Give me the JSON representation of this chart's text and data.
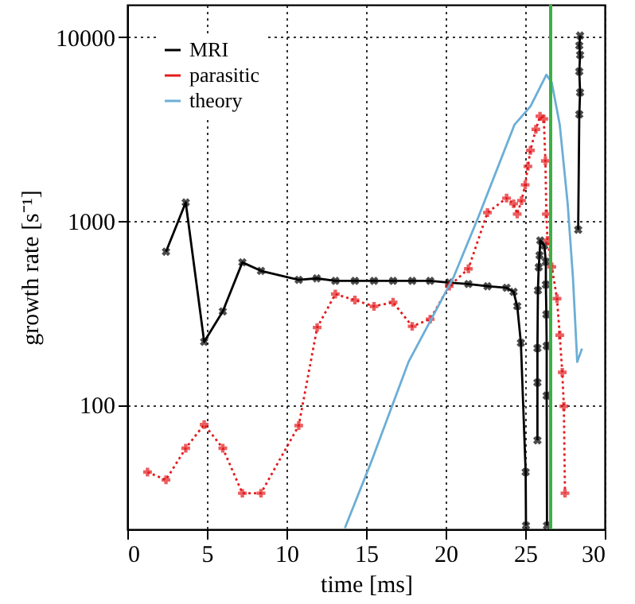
{
  "chart_data": {
    "type": "line",
    "xlabel": "time [ms]",
    "ylabel": "growth rate [s⁻¹]",
    "log": "y",
    "xlim": [
      0,
      30
    ],
    "xticks": [
      0,
      5,
      10,
      15,
      20,
      25,
      30
    ],
    "ylim": [
      21,
      15000
    ],
    "yticks": [
      100,
      1000,
      10000
    ],
    "grid": true,
    "legend": "top left",
    "ref_lines": [
      {
        "axis": "x",
        "value": 26.6,
        "color": "#3cb043"
      }
    ],
    "series": [
      {
        "name": "MRI",
        "color": "#000000",
        "marker": "cross",
        "line_style": "solid",
        "x": [
          2.43,
          3.67,
          4.83,
          6.0,
          7.23,
          8.4,
          10.77,
          11.9,
          13.07,
          14.3,
          15.5,
          16.7,
          17.9,
          19.03,
          20.23,
          21.43,
          22.63,
          23.83,
          24.27,
          24.5,
          24.73,
          25.03,
          25.05,
          null,
          25.77,
          25.77,
          25.77,
          25.8,
          25.85,
          25.9,
          25.95,
          26.2,
          26.3,
          26.3,
          26.33,
          26.35,
          26.35,
          26.37,
          null,
          28.33,
          28.4,
          28.45,
          28.4,
          28.45,
          28.4,
          28.45
        ],
        "values": [
          680,
          1260,
          220,
          322,
          595,
          535,
          478,
          487,
          472,
          472,
          472,
          472,
          472,
          472,
          462,
          454,
          441,
          433,
          411,
          344,
          217,
          43,
          22,
          null,
          64,
          132,
          203,
          419,
          560,
          650,
          783,
          735,
          600,
          450,
          310,
          209,
          112,
          22,
          null,
          895,
          3800,
          5000,
          6500,
          8000,
          9000,
          10200
        ]
      },
      {
        "name": "parasitic",
        "color": "#e41a1c",
        "marker": "cross",
        "line_style": "dotted",
        "x": [
          1.27,
          2.43,
          3.67,
          4.83,
          6.0,
          7.23,
          8.4,
          10.77,
          11.93,
          13.07,
          14.3,
          15.5,
          16.7,
          17.9,
          19.03,
          20.23,
          21.43,
          22.63,
          23.83,
          24.27,
          24.5,
          24.77,
          25.0,
          25.17,
          25.33,
          25.67,
          25.93,
          26.17,
          26.27,
          26.33,
          26.4,
          26.67,
          27.0,
          27.17,
          27.33,
          27.43,
          27.5
        ],
        "values": [
          43,
          39,
          58,
          78,
          58,
          33,
          33,
          77,
          263,
          400,
          371,
          343,
          361,
          267,
          292,
          442,
          549,
          1110,
          1330,
          1240,
          1090,
          1290,
          1570,
          1980,
          2420,
          3150,
          3710,
          3590,
          2120,
          1090,
          783,
          563,
          378,
          239,
          150,
          98,
          33
        ]
      },
      {
        "name": "theory",
        "color": "#6baed6",
        "marker": "none",
        "line_style": "solid",
        "x": [
          13.67,
          15.33,
          17.67,
          20.5,
          22.0,
          24.33,
          25.33,
          26.33,
          26.67,
          27.17,
          27.67,
          28.0,
          28.27,
          28.57
        ],
        "values": [
          21.3,
          49,
          171,
          494,
          1020,
          3340,
          4200,
          6240,
          5660,
          3340,
          1240,
          494,
          171,
          202
        ]
      }
    ]
  }
}
